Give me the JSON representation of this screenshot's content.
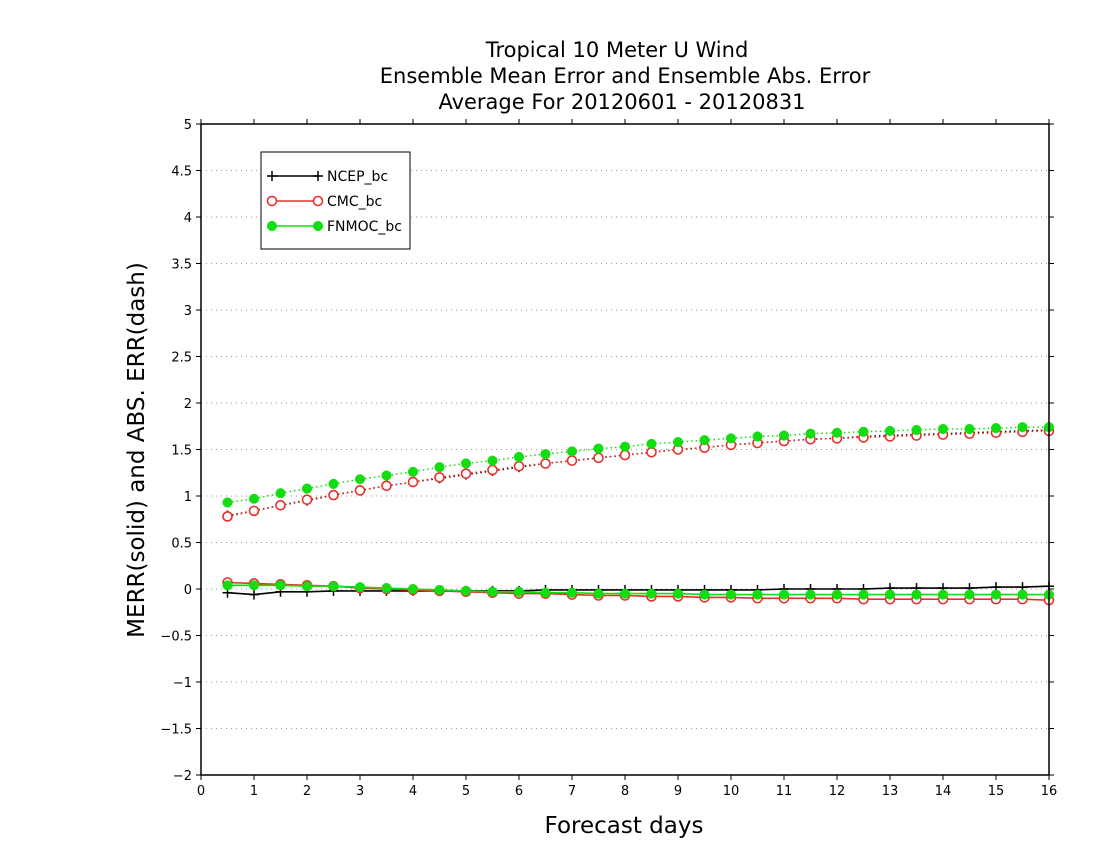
{
  "chart_data": {
    "type": "line",
    "title": [
      "Tropical 10 Meter U Wind",
      "Ensemble Mean Error and Ensemble Abs. Error",
      "Average For 20120601 - 20120831"
    ],
    "xlabel": "Forecast days",
    "ylabel": "MERR(solid) and ABS. ERR(dash)",
    "xlim": [
      0,
      16
    ],
    "ylim": [
      -2,
      5
    ],
    "xticks": [
      0,
      1,
      2,
      3,
      4,
      5,
      6,
      7,
      8,
      9,
      10,
      11,
      12,
      13,
      14,
      15,
      16
    ],
    "yticks": [
      -2,
      -1.5,
      -1,
      -0.5,
      0,
      0.5,
      1,
      1.5,
      2,
      2.5,
      3,
      3.5,
      4,
      4.5,
      5
    ],
    "ytick_labels": [
      "−2",
      "−1.5",
      "−1",
      "−0.5",
      "0",
      "0.5",
      "1",
      "1.5",
      "2",
      "2.5",
      "3",
      "3.5",
      "4",
      "4.5",
      "5"
    ],
    "grid": "horizontal dotted",
    "legend_position": "top-left",
    "x": [
      0.5,
      1,
      1.5,
      2,
      2.5,
      3,
      3.5,
      4,
      4.5,
      5,
      5.5,
      6,
      6.5,
      7,
      7.5,
      8,
      8.5,
      9,
      9.5,
      10,
      10.5,
      11,
      11.5,
      12,
      12.5,
      13,
      13.5,
      14,
      14.5,
      15,
      15.5,
      16
    ],
    "series": [
      {
        "name": "NCEP_bc",
        "color": "#000000",
        "marker": "plus",
        "merr": [
          -0.04,
          -0.06,
          -0.03,
          -0.03,
          -0.02,
          -0.02,
          -0.02,
          -0.02,
          -0.02,
          -0.02,
          -0.02,
          -0.02,
          -0.01,
          -0.01,
          -0.01,
          -0.01,
          -0.01,
          -0.01,
          -0.01,
          -0.01,
          -0.01,
          0.0,
          0.0,
          0.0,
          0.0,
          0.01,
          0.01,
          0.01,
          0.01,
          0.02,
          0.02,
          0.03
        ],
        "abs_err": [
          0.79,
          0.84,
          0.9,
          0.95,
          1.01,
          1.06,
          1.11,
          1.15,
          1.19,
          1.23,
          1.27,
          1.31,
          1.35,
          1.38,
          1.41,
          1.44,
          1.47,
          1.5,
          1.52,
          1.55,
          1.57,
          1.59,
          1.61,
          1.62,
          1.64,
          1.65,
          1.66,
          1.67,
          1.68,
          1.69,
          1.7,
          1.71
        ]
      },
      {
        "name": "CMC_bc",
        "color": "#e8302b",
        "marker": "circle-open",
        "merr": [
          0.07,
          0.06,
          0.05,
          0.04,
          0.03,
          0.01,
          0.0,
          -0.01,
          -0.02,
          -0.03,
          -0.04,
          -0.05,
          -0.05,
          -0.06,
          -0.07,
          -0.07,
          -0.08,
          -0.08,
          -0.09,
          -0.09,
          -0.1,
          -0.1,
          -0.1,
          -0.1,
          -0.11,
          -0.11,
          -0.11,
          -0.11,
          -0.11,
          -0.11,
          -0.11,
          -0.12
        ],
        "abs_err": [
          0.78,
          0.84,
          0.9,
          0.96,
          1.01,
          1.06,
          1.11,
          1.15,
          1.2,
          1.24,
          1.28,
          1.32,
          1.35,
          1.38,
          1.41,
          1.44,
          1.47,
          1.5,
          1.52,
          1.55,
          1.57,
          1.59,
          1.61,
          1.62,
          1.63,
          1.64,
          1.65,
          1.66,
          1.67,
          1.68,
          1.69,
          1.7
        ]
      },
      {
        "name": "FNMOC_bc",
        "color": "#11dd11",
        "marker": "circle-filled",
        "merr": [
          0.04,
          0.04,
          0.04,
          0.03,
          0.03,
          0.02,
          0.01,
          0.0,
          -0.01,
          -0.02,
          -0.03,
          -0.03,
          -0.04,
          -0.04,
          -0.05,
          -0.05,
          -0.05,
          -0.05,
          -0.06,
          -0.06,
          -0.06,
          -0.06,
          -0.06,
          -0.06,
          -0.06,
          -0.06,
          -0.06,
          -0.06,
          -0.06,
          -0.06,
          -0.06,
          -0.06
        ],
        "abs_err": [
          0.93,
          0.97,
          1.03,
          1.08,
          1.13,
          1.18,
          1.22,
          1.26,
          1.31,
          1.35,
          1.38,
          1.42,
          1.45,
          1.48,
          1.51,
          1.53,
          1.56,
          1.58,
          1.6,
          1.62,
          1.64,
          1.65,
          1.67,
          1.68,
          1.69,
          1.7,
          1.71,
          1.72,
          1.72,
          1.73,
          1.74,
          1.74
        ]
      }
    ]
  }
}
